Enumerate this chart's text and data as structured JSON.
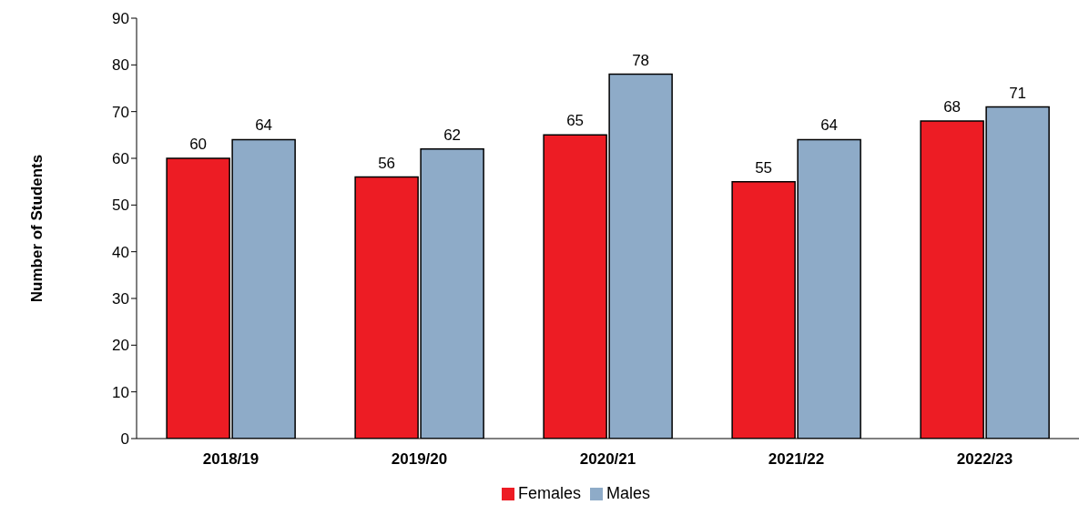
{
  "chart_data": {
    "type": "bar",
    "ylabel": "Number of Students",
    "categories": [
      "2018/19",
      "2019/20",
      "2020/21",
      "2021/22",
      "2022/23"
    ],
    "series": [
      {
        "name": "Females",
        "color": "#ed1c24",
        "values": [
          60,
          56,
          65,
          55,
          68
        ]
      },
      {
        "name": "Males",
        "color": "#8eabc8",
        "values": [
          64,
          62,
          78,
          64,
          71
        ]
      }
    ],
    "ylim": [
      0,
      90
    ],
    "yticks": [
      0,
      10,
      20,
      30,
      40,
      50,
      60,
      70,
      80,
      90
    ],
    "grid": false,
    "legend": "bottom",
    "data_labels": true
  }
}
